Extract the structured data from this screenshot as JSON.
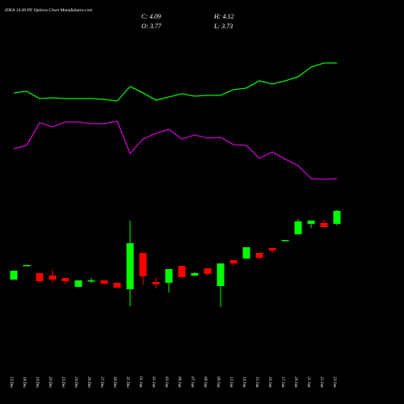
{
  "chart_data": {
    "type": "candlestick",
    "title": "IDEA 14.00 PE Options Chart MunafaSutra.com",
    "ohlc_labels": [
      "C: 4.09",
      "H: 4.12",
      "O: 3.77",
      "L: 3.73"
    ],
    "categories": [
      "13 Dec",
      "18 Dec",
      "19 Dec",
      "20 Dec",
      "23 Dec",
      "24 Dec",
      "26 Dec",
      "27 Dec",
      "30 Dec",
      "31 Dec",
      "01 Jan",
      "02 Jan",
      "03 Jan",
      "06 Jan",
      "07 Jan",
      "08 Jan",
      "09 Jan",
      "13 Jan",
      "14 Jan",
      "15 Jan",
      "16 Jan",
      "17 Jan",
      "20 Jan",
      "21 Jan",
      "22 Jan",
      "23 Jan"
    ],
    "open": [
      2.39,
      2.74,
      2.55,
      2.49,
      2.43,
      2.21,
      2.35,
      2.37,
      2.31,
      2.15,
      3.05,
      2.33,
      2.31,
      2.73,
      2.49,
      2.67,
      2.23,
      2.87,
      2.91,
      3.05,
      3.17,
      3.35,
      3.51,
      3.77,
      3.79,
      3.77
    ],
    "high": [
      2.61,
      2.76,
      2.55,
      2.63,
      2.43,
      2.37,
      2.43,
      2.37,
      2.31,
      3.85,
      3.05,
      2.43,
      2.65,
      2.73,
      2.57,
      2.67,
      2.79,
      2.87,
      3.19,
      3.05,
      3.17,
      3.37,
      3.89,
      3.85,
      3.87,
      4.12
    ],
    "low": [
      2.39,
      2.74,
      2.35,
      2.31,
      2.27,
      2.21,
      2.31,
      2.25,
      2.19,
      1.73,
      2.25,
      2.17,
      2.07,
      2.45,
      2.47,
      2.49,
      1.71,
      2.73,
      2.91,
      2.89,
      3.05,
      3.35,
      3.51,
      3.67,
      3.69,
      3.73
    ],
    "close": [
      2.61,
      2.75,
      2.35,
      2.39,
      2.35,
      2.37,
      2.37,
      2.29,
      2.19,
      3.29,
      2.47,
      2.27,
      2.65,
      2.45,
      2.55,
      2.53,
      2.79,
      2.79,
      3.19,
      2.93,
      3.11,
      3.37,
      3.83,
      3.85,
      3.69,
      4.09
    ],
    "up_color": "#00ff00",
    "down_color": "#ff0000",
    "ylim": [
      1.7,
      4.3
    ],
    "overlay_ylim": [
      0,
      10
    ],
    "overlays": [
      {
        "color": "#00ee00",
        "values": [
          7.7,
          7.74,
          7.56,
          7.58,
          7.56,
          7.56,
          7.56,
          7.54,
          7.5,
          7.86,
          7.7,
          7.52,
          7.6,
          7.68,
          7.62,
          7.64,
          7.64,
          7.78,
          7.82,
          8.0,
          7.92,
          8.0,
          8.1,
          8.34,
          8.44,
          8.44
        ]
      },
      {
        "color": "#cc00cc",
        "values": [
          6.32,
          6.4,
          6.96,
          6.86,
          6.98,
          6.98,
          6.94,
          6.94,
          7.0,
          6.2,
          6.56,
          6.7,
          6.8,
          6.56,
          6.66,
          6.58,
          6.6,
          6.42,
          6.4,
          6.08,
          6.24,
          6.06,
          5.9,
          5.58,
          5.56,
          5.58
        ]
      }
    ]
  }
}
